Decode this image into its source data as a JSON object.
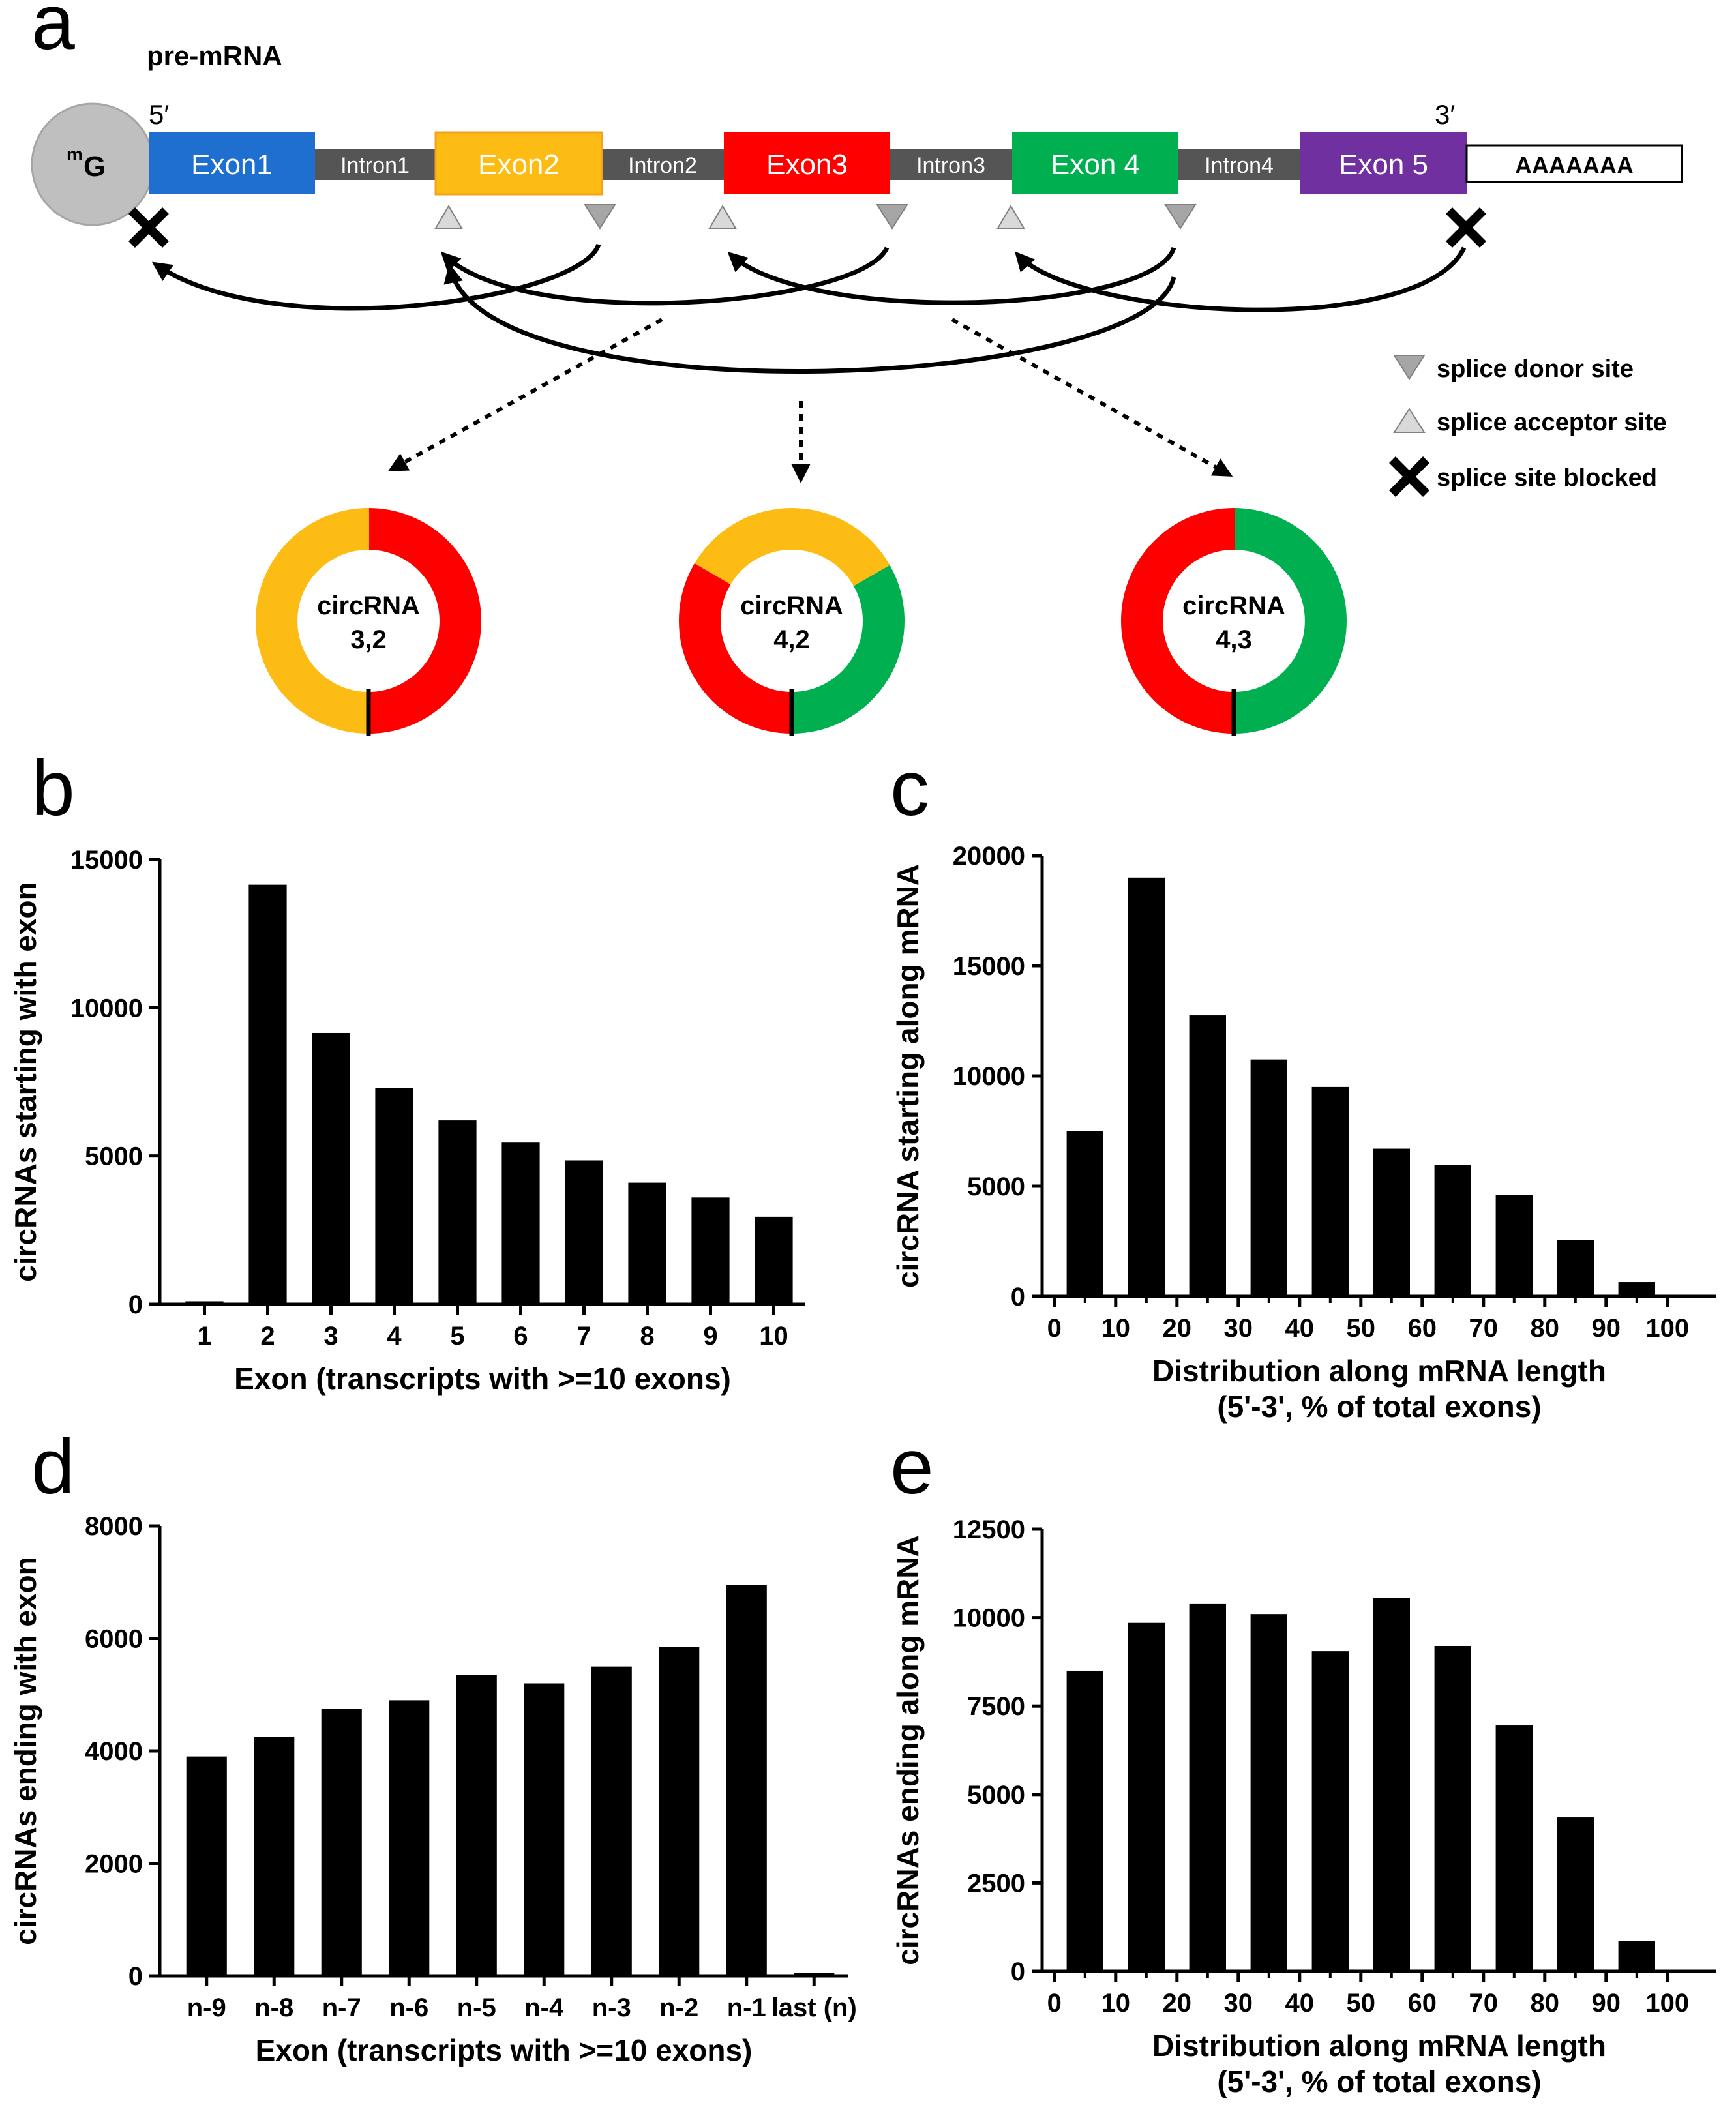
{
  "panel_labels": [
    "a",
    "b",
    "c",
    "d",
    "e"
  ],
  "diagram": {
    "title": "pre-mRNA",
    "five_prime": "5′",
    "three_prime": "3′",
    "cap": {
      "superscript": "m",
      "letter": "G"
    },
    "poly_a": "AAAAAAA",
    "exons": [
      {
        "label": "Exon1",
        "color": "#1f6fd0"
      },
      {
        "label": "Exon2",
        "color": "#fdbc14"
      },
      {
        "label": "Exon3",
        "color": "#ff0000"
      },
      {
        "label": "Exon 4",
        "color": "#00b050"
      },
      {
        "label": "Exon 5",
        "color": "#7030a0"
      }
    ],
    "introns": [
      "Intron1",
      "Intron2",
      "Intron3",
      "Intron4"
    ],
    "legend": [
      {
        "label": "splice donor site",
        "icon": "donor-triangle-icon"
      },
      {
        "label": "splice acceptor site",
        "icon": "acceptor-triangle-icon"
      },
      {
        "label": "splice site blocked",
        "icon": "cross-icon"
      }
    ],
    "circRNAs": [
      {
        "line1": "circRNA",
        "line2": "3,2",
        "segments": [
          {
            "color": "#ff0000",
            "fraction": 0.5
          },
          {
            "color": "#fdbc14",
            "fraction": 0.5
          }
        ]
      },
      {
        "line1": "circRNA",
        "line2": "4,2",
        "segments": [
          {
            "color": "#00b050",
            "fraction": 0.333
          },
          {
            "color": "#fdbc14",
            "fraction": 0.333
          },
          {
            "color": "#ff0000",
            "fraction": 0.334
          }
        ]
      },
      {
        "line1": "circRNA",
        "line2": "4,3",
        "segments": [
          {
            "color": "#00b050",
            "fraction": 0.5
          },
          {
            "color": "#ff0000",
            "fraction": 0.5
          }
        ]
      }
    ]
  },
  "chart_data": [
    {
      "panel": "b",
      "type": "bar",
      "categories": [
        "1",
        "2",
        "3",
        "4",
        "5",
        "6",
        "7",
        "8",
        "9",
        "10"
      ],
      "values": [
        100,
        14150,
        9150,
        7300,
        6200,
        5450,
        4850,
        4100,
        3600,
        2950
      ],
      "ylim": [
        0,
        15000
      ],
      "yticks": [
        0,
        5000,
        10000,
        15000
      ],
      "xlabel": "Exon (transcripts with >=10 exons)",
      "xlabel2": "",
      "ylabel": "circRNAs starting with exon",
      "bar_color": "#000000"
    },
    {
      "panel": "c",
      "type": "bar",
      "x": [
        5,
        15,
        25,
        35,
        45,
        55,
        65,
        75,
        85,
        95
      ],
      "values": [
        7500,
        19000,
        12750,
        10750,
        9500,
        6700,
        5950,
        4600,
        2550,
        650
      ],
      "xlim": [
        -2,
        108
      ],
      "xticks": [
        0,
        10,
        20,
        30,
        40,
        50,
        60,
        70,
        80,
        90,
        100
      ],
      "ylim": [
        0,
        20000
      ],
      "yticks": [
        0,
        5000,
        10000,
        15000,
        20000
      ],
      "xlabel": "Distribution along mRNA length",
      "xlabel2": "(5'-3', %  of total exons)",
      "ylabel": "circRNA starting along mRNA",
      "bar_color": "#000000"
    },
    {
      "panel": "d",
      "type": "bar",
      "categories": [
        "n-9",
        "n-8",
        "n-7",
        "n-6",
        "n-5",
        "n-4",
        "n-3",
        "n-2",
        "n-1",
        "last (n)"
      ],
      "values": [
        3900,
        4250,
        4750,
        4900,
        5350,
        5200,
        5500,
        5850,
        6950,
        50
      ],
      "ylim": [
        0,
        8000
      ],
      "yticks": [
        0,
        2000,
        4000,
        6000,
        8000
      ],
      "xlabel": "Exon (transcripts with >=10 exons)",
      "xlabel2": "",
      "ylabel": "circRNAs ending with exon",
      "bar_color": "#000000"
    },
    {
      "panel": "e",
      "type": "bar",
      "x": [
        5,
        15,
        25,
        35,
        45,
        55,
        65,
        75,
        85,
        95
      ],
      "values": [
        8500,
        9850,
        10400,
        10100,
        9050,
        10550,
        9200,
        6950,
        4350,
        850
      ],
      "xlim": [
        -2,
        108
      ],
      "xticks": [
        0,
        10,
        20,
        30,
        40,
        50,
        60,
        70,
        80,
        90,
        100
      ],
      "ylim": [
        0,
        12500
      ],
      "yticks": [
        0,
        2500,
        5000,
        7500,
        10000,
        12500
      ],
      "xlabel": "Distribution along mRNA length",
      "xlabel2": "(5'-3', %  of total exons)",
      "ylabel": "circRNAs ending along mRNA",
      "bar_color": "#000000"
    }
  ]
}
